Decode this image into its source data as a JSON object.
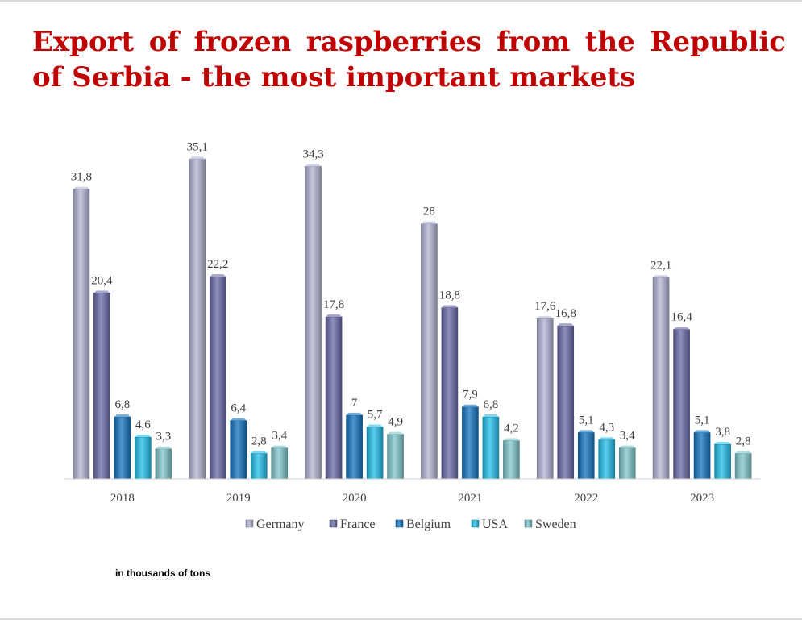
{
  "title": "Export of frozen raspberries from the Republic of Serbia - the most important markets",
  "note": "in thousands of tons",
  "colors": {
    "title": "#c00000",
    "Germany": "#b3b3d4",
    "France": "#6a6aa8",
    "Belgium": "#1273c0",
    "USA": "#22bde8",
    "Sweden": "#7fc6cc"
  },
  "chart_data": {
    "type": "bar",
    "categories": [
      "2018",
      "2019",
      "2020",
      "2021",
      "2022",
      "2023"
    ],
    "series": [
      {
        "name": "Germany",
        "values": [
          31.8,
          35.1,
          34.3,
          28,
          17.6,
          22.1
        ],
        "labels": [
          "31,8",
          "35,1",
          "34,3",
          "28",
          "17,6",
          "22,1"
        ]
      },
      {
        "name": "France",
        "values": [
          20.4,
          22.2,
          17.8,
          18.8,
          16.8,
          16.4
        ],
        "labels": [
          "20,4",
          "22,2",
          "17,8",
          "18,8",
          "16,8",
          "16,4"
        ]
      },
      {
        "name": "Belgium",
        "values": [
          6.8,
          6.4,
          7,
          7.9,
          5.1,
          5.1
        ],
        "labels": [
          "6,8",
          "6,4",
          "7",
          "7,9",
          "5,1",
          "5,1"
        ]
      },
      {
        "name": "USA",
        "values": [
          4.6,
          2.8,
          5.7,
          6.8,
          4.3,
          3.8
        ],
        "labels": [
          "4,6",
          "2,8",
          "5,7",
          "6,8",
          "4,3",
          "3,8"
        ]
      },
      {
        "name": "Sweden",
        "values": [
          3.3,
          3.4,
          4.9,
          4.2,
          3.4,
          2.8
        ],
        "labels": [
          "3,3",
          "3,4",
          "4,9",
          "4,2",
          "3,4",
          "2,8"
        ]
      }
    ],
    "xlabel": "",
    "ylabel": "",
    "ylim": [
      0,
      36
    ],
    "grid": false,
    "legend": "bottom",
    "data_labels": true
  }
}
